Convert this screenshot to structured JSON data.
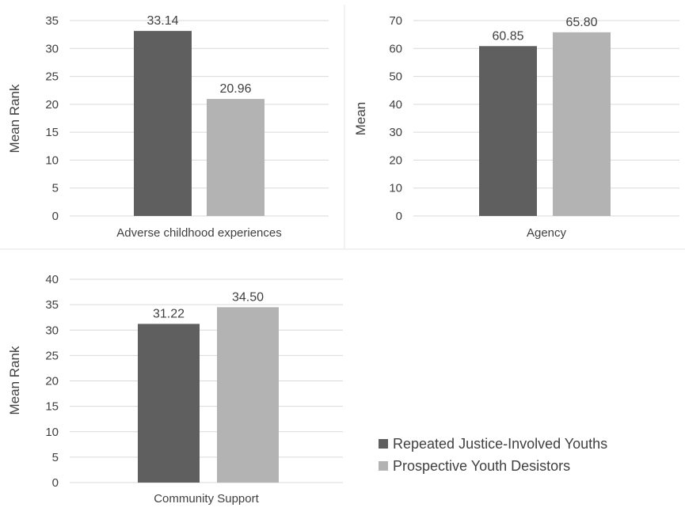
{
  "colors": {
    "series_a": "#5f5f5f",
    "series_b": "#b3b3b3",
    "grid": "#d9d9d9",
    "text": "#404040",
    "panel_border": "#e6e6e6"
  },
  "legend": {
    "placement": "bottom-right",
    "items": [
      {
        "label": "Repeated Justice-Involved Youths"
      },
      {
        "label": "Prospective Youth Desistors"
      }
    ]
  },
  "chart_data": [
    {
      "type": "bar",
      "categories": [
        "Adverse childhood experiences"
      ],
      "series": [
        {
          "name": "Repeated Justice-Involved Youths",
          "values": [
            33.14
          ],
          "label": "33.14"
        },
        {
          "name": "Prospective Youth Desistors",
          "values": [
            20.96
          ],
          "label": "20.96"
        }
      ],
      "ylabel": "Mean Rank",
      "ylim": [
        0,
        35
      ],
      "yticks": [
        "0",
        "5",
        "10",
        "15",
        "20",
        "25",
        "30",
        "35"
      ],
      "grid": true
    },
    {
      "type": "bar",
      "categories": [
        "Agency"
      ],
      "series": [
        {
          "name": "Repeated Justice-Involved Youths",
          "values": [
            60.85
          ],
          "label": "60.85"
        },
        {
          "name": "Prospective Youth Desistors",
          "values": [
            65.8
          ],
          "label": "65.80"
        }
      ],
      "ylabel": "Mean",
      "ylim": [
        0,
        70
      ],
      "yticks": [
        "0",
        "10",
        "20",
        "30",
        "40",
        "50",
        "60",
        "70"
      ],
      "grid": true
    },
    {
      "type": "bar",
      "categories": [
        "Community Support"
      ],
      "series": [
        {
          "name": "Repeated Justice-Involved Youths",
          "values": [
            31.22
          ],
          "label": "31.22"
        },
        {
          "name": "Prospective Youth Desistors",
          "values": [
            34.5
          ],
          "label": "34.50"
        }
      ],
      "ylabel": "Mean Rank",
      "ylim": [
        0,
        40
      ],
      "yticks": [
        "0",
        "5",
        "10",
        "15",
        "20",
        "25",
        "30",
        "35",
        "40"
      ],
      "grid": true
    }
  ]
}
